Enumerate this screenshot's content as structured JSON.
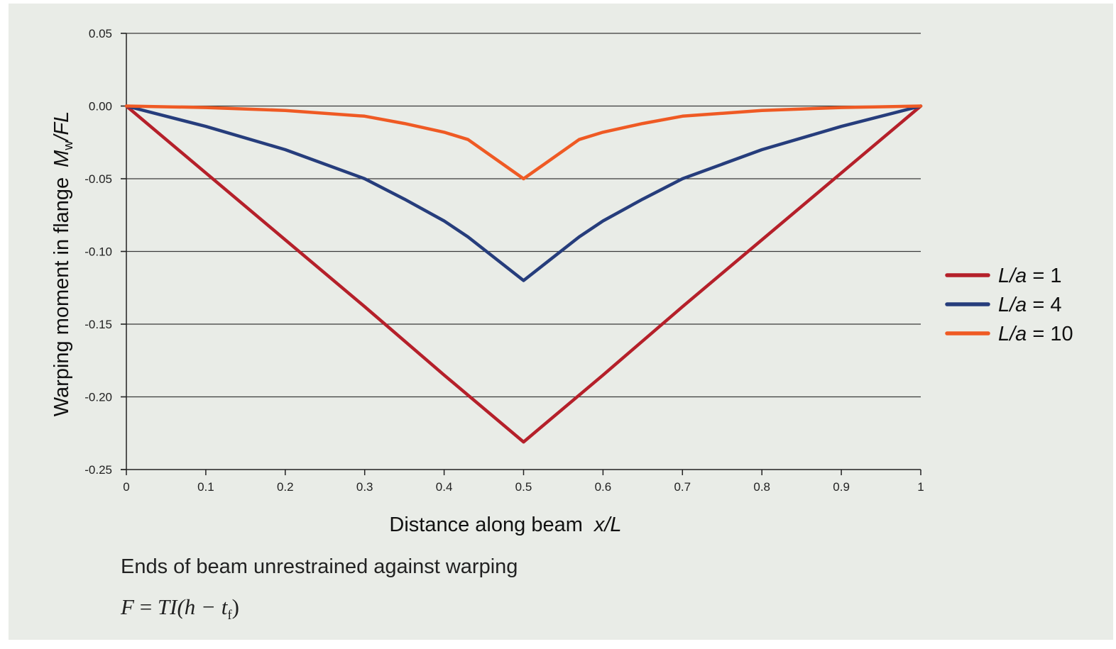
{
  "chart_data": {
    "type": "line",
    "xlabel_text": "Distance along beam",
    "xlabel_var": "x/L",
    "ylabel_text": "Warping moment in flange",
    "ylabel_var_M": "M",
    "ylabel_var_sub": "w",
    "ylabel_var_rest": "/FL",
    "xlim": [
      0,
      1
    ],
    "ylim": [
      -0.25,
      0.05
    ],
    "xticks": [
      0,
      0.1,
      0.2,
      0.3,
      0.4,
      0.5,
      0.6,
      0.7,
      0.8,
      0.9,
      1
    ],
    "xtick_labels": [
      "0",
      "0.1",
      "0.2",
      "0.3",
      "0.4",
      "0.5",
      "0.6",
      "0.7",
      "0.8",
      "0.9",
      "1"
    ],
    "yticks": [
      0.05,
      0,
      -0.05,
      -0.1,
      -0.15,
      -0.2,
      -0.25
    ],
    "ytick_labels": [
      "0.05",
      "0.00",
      "-0.05",
      "-0.10",
      "-0.15",
      "-0.20",
      "-0.25"
    ],
    "grid": "horizontal",
    "legend_position": "right",
    "series": [
      {
        "name": "L/a = 1",
        "legend_var": "L/a",
        "legend_value": "1",
        "color": "#b5202a",
        "x": [
          0,
          0.1,
          0.2,
          0.3,
          0.4,
          0.5,
          0.6,
          0.7,
          0.8,
          0.9,
          1
        ],
        "y": [
          0,
          -0.046,
          -0.092,
          -0.138,
          -0.185,
          -0.231,
          -0.185,
          -0.138,
          -0.092,
          -0.046,
          0
        ]
      },
      {
        "name": "L/a = 4",
        "legend_var": "L/a",
        "legend_value": "4",
        "color": "#263d7c",
        "x": [
          0,
          0.1,
          0.2,
          0.3,
          0.35,
          0.4,
          0.43,
          0.5,
          0.57,
          0.6,
          0.65,
          0.7,
          0.8,
          0.9,
          1
        ],
        "y": [
          0,
          -0.014,
          -0.03,
          -0.05,
          -0.064,
          -0.079,
          -0.09,
          -0.12,
          -0.09,
          -0.079,
          -0.064,
          -0.05,
          -0.03,
          -0.014,
          0
        ]
      },
      {
        "name": "L/a = 10",
        "legend_var": "L/a",
        "legend_value": "10",
        "color": "#ef5a24",
        "x": [
          0,
          0.1,
          0.2,
          0.3,
          0.35,
          0.4,
          0.43,
          0.5,
          0.57,
          0.6,
          0.65,
          0.7,
          0.8,
          0.9,
          1
        ],
        "y": [
          0,
          -0.001,
          -0.003,
          -0.007,
          -0.012,
          -0.018,
          -0.023,
          -0.05,
          -0.023,
          -0.018,
          -0.012,
          -0.007,
          -0.003,
          -0.001,
          0
        ]
      }
    ]
  },
  "caption": "Ends of beam unrestrained against warping",
  "formula": {
    "lhs": "F",
    "eq": " = ",
    "rhs_a": "TI(h − t",
    "rhs_sub": "f",
    "rhs_b": ")"
  }
}
